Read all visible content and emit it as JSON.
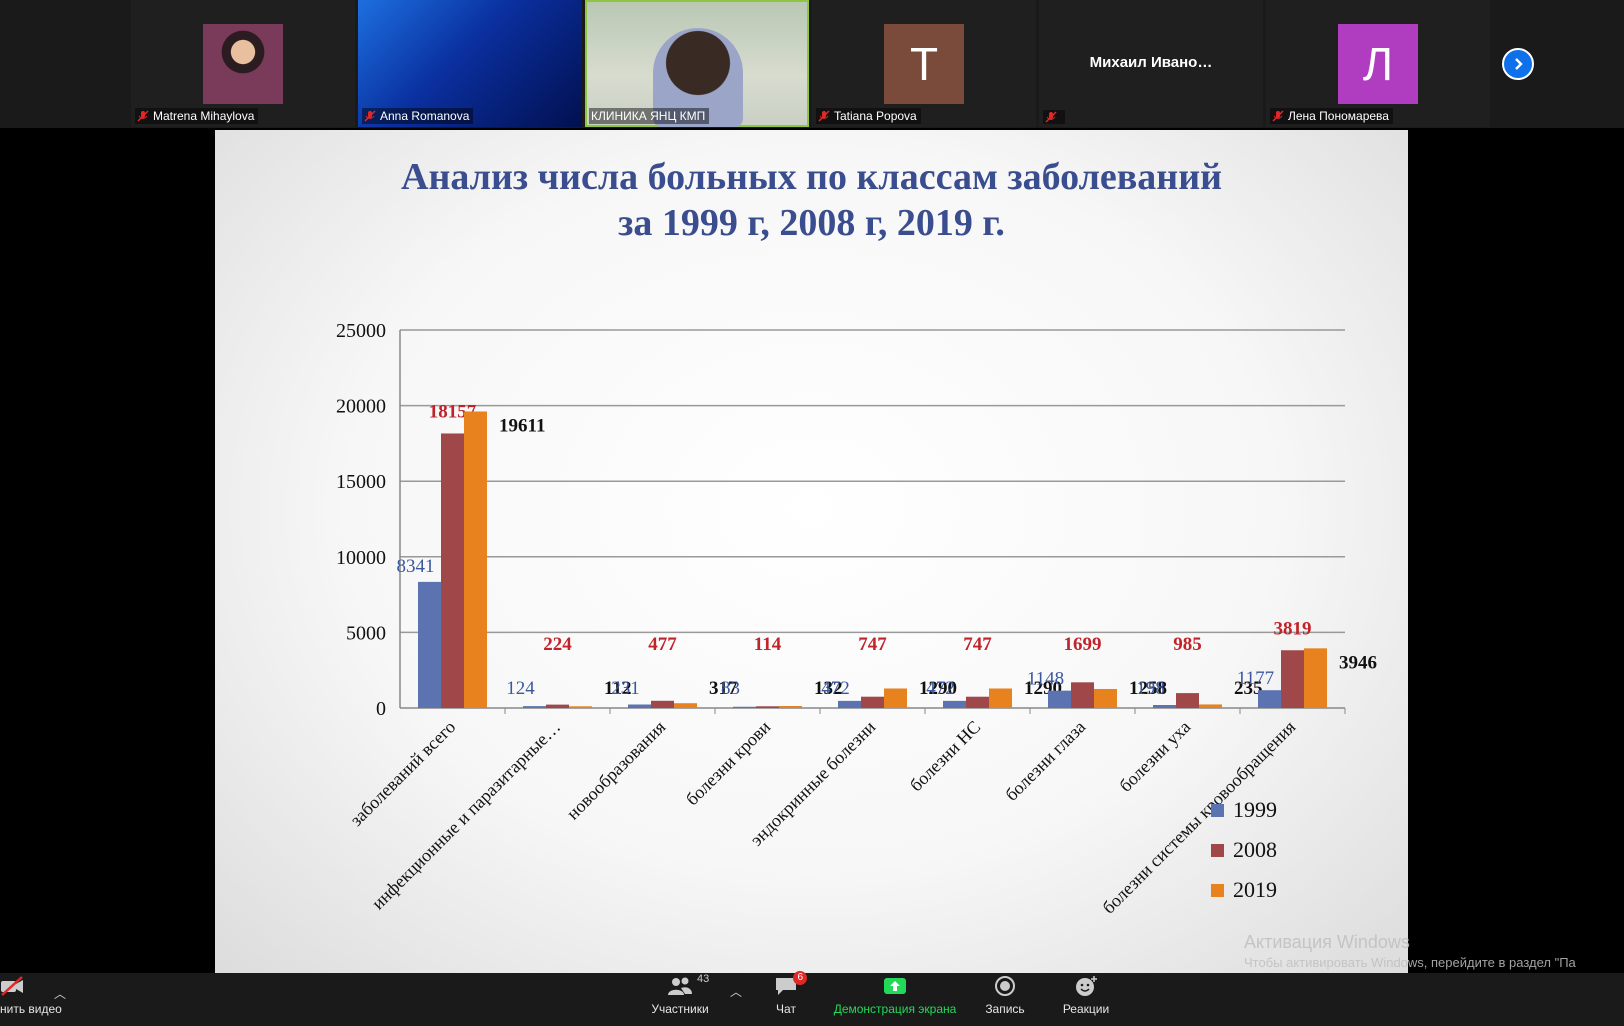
{
  "participants": [
    {
      "name": "Matrena Mihaylova",
      "muted": true,
      "kind": "photo"
    },
    {
      "name": "Anna Romanova",
      "muted": true,
      "kind": "video-blue"
    },
    {
      "name": "КЛИНИКА ЯНЦ КМП",
      "muted": false,
      "kind": "video-active"
    },
    {
      "name": "Tatiana Popova",
      "muted": true,
      "kind": "avatar",
      "initial": "T",
      "color": "#7a4b3a"
    },
    {
      "name": "",
      "muted": true,
      "kind": "name-only",
      "display": "Михаил  Ивано…"
    },
    {
      "name": "Лена Пономарева",
      "muted": true,
      "kind": "avatar",
      "initial": "Л",
      "color": "#b03cc0"
    }
  ],
  "slide": {
    "title_line1": "Анализ числа больных по классам заболеваний",
    "title_line2": "за 1999 г, 2008 г, 2019 г."
  },
  "chart_data": {
    "type": "bar",
    "categories": [
      "заболеваний всего",
      "инфекционные и паразитарные…",
      "новообразования",
      "болезни крови",
      "эндокринные болезни",
      "болезни НС",
      "болезни глаза",
      "болезни уха",
      "болезни системы кровообращения"
    ],
    "series": [
      {
        "name": "1999",
        "color": "#5b73b0",
        "label_color": "#3a57a0",
        "values": [
          8341,
          124,
          231,
          83,
          472,
          472,
          1148,
          198,
          1177
        ]
      },
      {
        "name": "2008",
        "color": "#a0474a",
        "label_color": "#c0232a",
        "values": [
          18157,
          224,
          477,
          114,
          747,
          747,
          1699,
          985,
          3819
        ]
      },
      {
        "name": "2019",
        "color": "#e8821e",
        "label_color": "#111111",
        "values": [
          19611,
          112,
          317,
          132,
          1290,
          1290,
          1258,
          235,
          3946
        ]
      }
    ],
    "yticks": [
      "0",
      "5000",
      "10000",
      "15000",
      "20000",
      "25000"
    ],
    "ylim": [
      0,
      25000
    ],
    "grid": true,
    "legend": "bottom-right"
  },
  "toolbar": {
    "video_label": "нить видео",
    "participants_label": "Участники",
    "participants_count": "43",
    "chat_label": "Чат",
    "chat_badge": "6",
    "share_label": "Демонстрация экрана",
    "record_label": "Запись",
    "reactions_label": "Реакции"
  },
  "overlay": {
    "activation_title": "Активация Windows",
    "activation_sub": "Чтобы активировать Windows, перейдите в раздел \"Па"
  },
  "colors": {
    "share_green": "#23d959",
    "zoom_blue": "#0e71eb"
  }
}
